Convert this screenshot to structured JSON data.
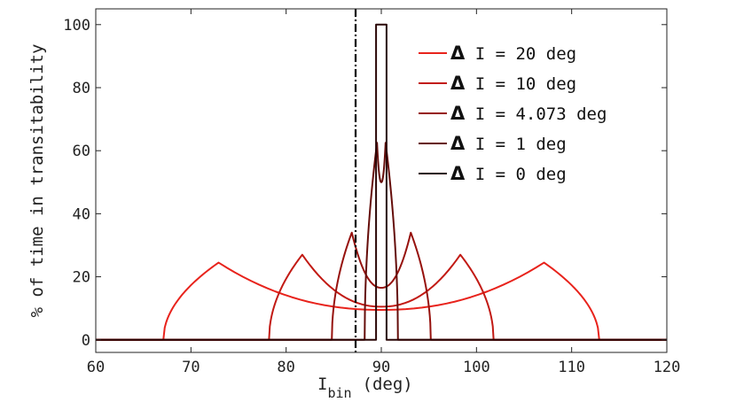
{
  "chart_data": {
    "type": "line",
    "title": "",
    "xlabel": "I",
    "xlabel_sub": "bin",
    "xlabel_unit": "(deg)",
    "ylabel": "% of time in transitability",
    "xlim": [
      60,
      120
    ],
    "ylim": [
      -4,
      105
    ],
    "xticks": [
      60,
      70,
      80,
      90,
      100,
      110,
      120
    ],
    "yticks": [
      0,
      20,
      40,
      60,
      80,
      100
    ],
    "grid": false,
    "legend_position": "top-right",
    "reference_line": {
      "x": 87.3,
      "style": "dash-dot",
      "color": "#000000"
    },
    "series": [
      {
        "name": "Δ I = 20 deg",
        "delta": "Δ",
        "label": " I = 20 deg",
        "color": "#e8231c",
        "center": 90.0,
        "halfwidth": 22.9,
        "cusp": 17.1,
        "min": 9.5,
        "peak": 24.5
      },
      {
        "name": "Δ I = 10 deg",
        "delta": "Δ",
        "label": " I = 10 deg",
        "color": "#c21a14",
        "center": 90.0,
        "halfwidth": 11.8,
        "cusp": 8.3,
        "min": 10.5,
        "peak": 27.0
      },
      {
        "name": "Δ I = 4.073 deg",
        "delta": "Δ",
        "label": " I = 4.073 deg",
        "color": "#96110d",
        "center": 90.0,
        "halfwidth": 5.2,
        "cusp": 3.1,
        "min": 16.5,
        "peak": 34.0
      },
      {
        "name": "Δ I = 1 deg",
        "delta": "Δ",
        "label": " I = 1 deg",
        "color": "#650d0a",
        "center": 90.0,
        "halfwidth": 1.75,
        "cusp": 0.45,
        "min": 50.0,
        "peak": 62.5
      },
      {
        "name": "Δ I = 0 deg",
        "delta": "Δ",
        "label": " I = 0 deg",
        "color": "#2a0505",
        "center": 90.0,
        "halfwidth": 0.55,
        "cusp": 0,
        "min": 100,
        "peak": 100
      }
    ]
  }
}
